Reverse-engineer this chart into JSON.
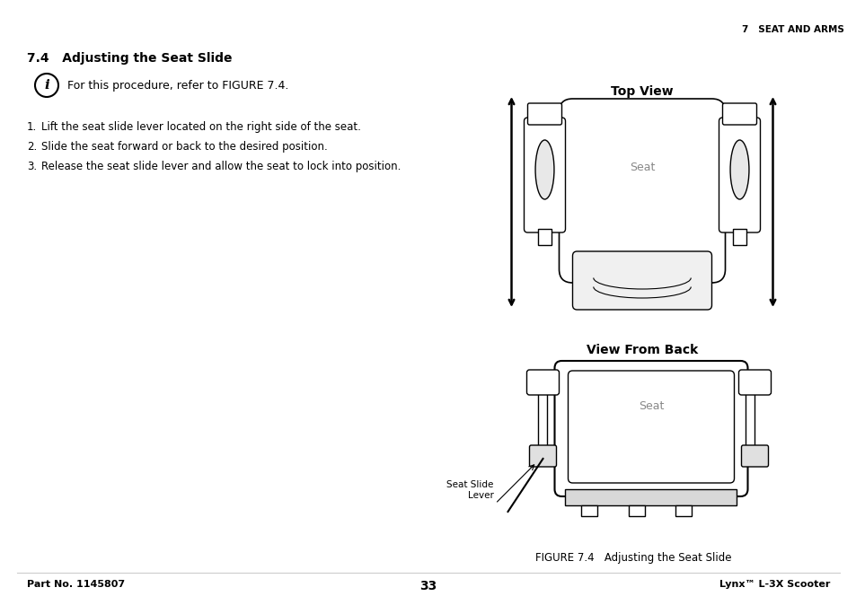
{
  "bg_color": "#ffffff",
  "header_right": "7   SEAT AND ARMS",
  "section_title": "7.4   Adjusting the Seat Slide",
  "info_text": "For this procedure, refer to FIGURE 7.4.",
  "steps": [
    "Lift the seat slide lever located on the right side of the seat.",
    "Slide the seat forward or back to the desired position.",
    "Release the seat slide lever and allow the seat to lock into position."
  ],
  "top_view_label": "Top View",
  "side_view_label": "View From Back",
  "seat_label_top": "Seat",
  "seat_label_side": "Seat",
  "seat_slide_lever_label": "Seat Slide\nLever",
  "figure_caption": "FIGURE 7.4   Adjusting the Seat Slide",
  "footer_left": "Part No. 1145807",
  "footer_center": "33",
  "footer_right": "Lynx™ L-3X Scooter",
  "text_color": "#000000",
  "light_gray": "#888888",
  "line_color": "#000000"
}
